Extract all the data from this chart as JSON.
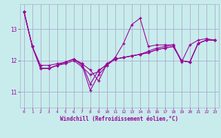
{
  "background_color": "#c8ecec",
  "grid_color": "#aaaacc",
  "line_color": "#990099",
  "xlabel": "Windchill (Refroidissement éolien,°C)",
  "tick_color": "#990099",
  "xlim": [
    -0.5,
    23.5
  ],
  "ylim": [
    10.5,
    13.8
  ],
  "yticks": [
    11,
    12,
    13
  ],
  "xticks": [
    0,
    1,
    2,
    3,
    4,
    5,
    6,
    7,
    8,
    9,
    10,
    11,
    12,
    13,
    14,
    15,
    16,
    17,
    18,
    19,
    20,
    21,
    22,
    23
  ],
  "series": [
    [
      13.55,
      12.45,
      11.85,
      11.85,
      11.9,
      11.95,
      12.05,
      11.85,
      11.05,
      11.55,
      11.85,
      12.1,
      12.55,
      13.15,
      13.35,
      12.45,
      12.5,
      12.5,
      12.5,
      11.95,
      12.5,
      12.65,
      12.7,
      12.65
    ],
    [
      13.55,
      12.45,
      11.75,
      11.75,
      11.85,
      11.9,
      12.0,
      11.8,
      11.55,
      11.65,
      11.9,
      12.05,
      12.1,
      12.15,
      12.2,
      12.3,
      12.4,
      12.45,
      12.5,
      12.0,
      11.95,
      12.55,
      12.65,
      12.65
    ],
    [
      13.55,
      12.45,
      11.75,
      11.75,
      11.85,
      11.95,
      12.05,
      11.9,
      11.7,
      11.35,
      11.9,
      12.05,
      12.1,
      12.15,
      12.2,
      12.25,
      12.35,
      12.4,
      12.45,
      12.0,
      11.95,
      12.55,
      12.65,
      12.65
    ],
    [
      13.55,
      12.45,
      11.75,
      11.75,
      11.85,
      11.95,
      12.05,
      11.9,
      11.25,
      11.7,
      11.85,
      12.05,
      12.1,
      12.15,
      12.2,
      12.25,
      12.35,
      12.4,
      12.45,
      12.0,
      11.95,
      12.55,
      12.65,
      12.65
    ]
  ]
}
